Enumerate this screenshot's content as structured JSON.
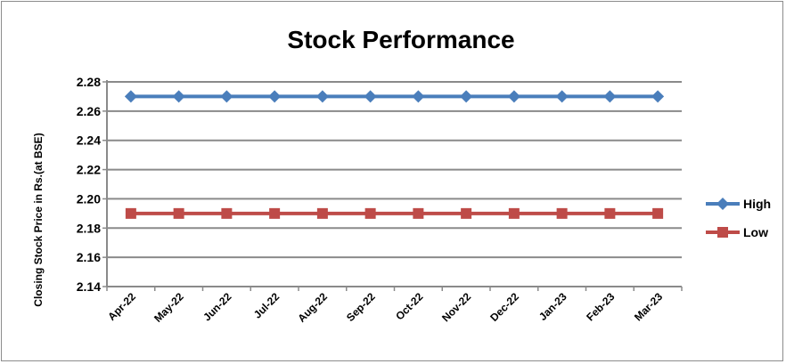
{
  "chart_data": {
    "type": "line",
    "title": "Stock Performance",
    "ylabel": "Closing Stock Price in Rs.(at BSE)",
    "xlabel": "",
    "categories": [
      "Apr-22",
      "May-22",
      "Jun-22",
      "Jul-22",
      "Aug-22",
      "Sep-22",
      "Oct-22",
      "Nov-22",
      "Dec-22",
      "Jan-23",
      "Feb-23",
      "Mar-23"
    ],
    "ylim": [
      2.14,
      2.28
    ],
    "yticks": [
      "2.28",
      "2.26",
      "2.24",
      "2.22",
      "2.20",
      "2.18",
      "2.16",
      "2.14"
    ],
    "grid": true,
    "legend_position": "right",
    "series": [
      {
        "name": "High",
        "values": [
          2.27,
          2.27,
          2.27,
          2.27,
          2.27,
          2.27,
          2.27,
          2.27,
          2.27,
          2.27,
          2.27,
          2.27
        ],
        "color": "#4a7ebb",
        "marker": "diamond"
      },
      {
        "name": "Low",
        "values": [
          2.19,
          2.19,
          2.19,
          2.19,
          2.19,
          2.19,
          2.19,
          2.19,
          2.19,
          2.19,
          2.19,
          2.19
        ],
        "color": "#be4b48",
        "marker": "square"
      }
    ]
  }
}
